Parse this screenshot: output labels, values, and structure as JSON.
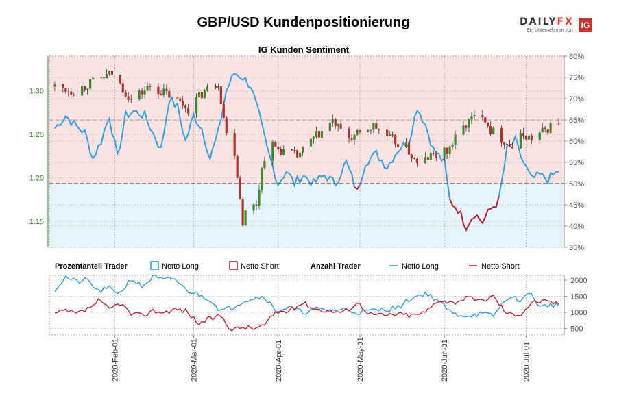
{
  "header": {
    "title": "GBP/USD Kundenpositionierung",
    "brand": {
      "name_left": "DAILY",
      "name_right": "FX",
      "tagline": "Ein Unternehmen von",
      "ig": "IG"
    }
  },
  "colors": {
    "long": "#2f9fe0",
    "short": "#c51d34",
    "long_fill": "#e6f4fb",
    "short_fill": "#fbe3e3",
    "candle_up": "#3a8a2a",
    "candle_down": "#b0322a",
    "price_axis": "#3a8a2a"
  },
  "legend": {
    "group1": "Prozentanteil Trader",
    "long": "Netto Long",
    "short": "Netto Short",
    "group2": "Anzahl Trader"
  },
  "chart_data": [
    {
      "type": "candlestick",
      "title": "IG Kunden Sentiment",
      "x_ticks": [
        "2020-Feb-01",
        "2020-Mar-01",
        "2020-Apr-01",
        "2020-May-01",
        "2020-Jun-01",
        "2020-Jul-01"
      ],
      "price_axis": {
        "ylim": [
          1.12,
          1.34
        ],
        "ticks": [
          "1.15",
          "1.20",
          "1.25",
          "1.30"
        ]
      },
      "sentiment_axis": {
        "ylim": [
          35,
          80
        ],
        "ticks": [
          "35%",
          "40%",
          "45%",
          "50%",
          "55%",
          "60%",
          "65%",
          "70%",
          "75%",
          "80%"
        ],
        "reference_line": 50
      },
      "price_close_keypoints": [
        {
          "x": "2020-01-10",
          "y": 1.305
        },
        {
          "x": "2020-01-17",
          "y": 1.3
        },
        {
          "x": "2020-01-24",
          "y": 1.31
        },
        {
          "x": "2020-01-31",
          "y": 1.32
        },
        {
          "x": "2020-02-07",
          "y": 1.29
        },
        {
          "x": "2020-02-14",
          "y": 1.305
        },
        {
          "x": "2020-02-21",
          "y": 1.295
        },
        {
          "x": "2020-02-28",
          "y": 1.28
        },
        {
          "x": "2020-03-05",
          "y": 1.3
        },
        {
          "x": "2020-03-10",
          "y": 1.31
        },
        {
          "x": "2020-03-13",
          "y": 1.25
        },
        {
          "x": "2020-03-16",
          "y": 1.23
        },
        {
          "x": "2020-03-19",
          "y": 1.15
        },
        {
          "x": "2020-03-20",
          "y": 1.16
        },
        {
          "x": "2020-03-24",
          "y": 1.17
        },
        {
          "x": "2020-03-26",
          "y": 1.21
        },
        {
          "x": "2020-03-28",
          "y": 1.24
        },
        {
          "x": "2020-04-03",
          "y": 1.23
        },
        {
          "x": "2020-04-08",
          "y": 1.225
        },
        {
          "x": "2020-04-14",
          "y": 1.245
        },
        {
          "x": "2020-04-21",
          "y": 1.265
        },
        {
          "x": "2020-04-26",
          "y": 1.245
        },
        {
          "x": "2020-05-01",
          "y": 1.25
        },
        {
          "x": "2020-05-06",
          "y": 1.26
        },
        {
          "x": "2020-05-12",
          "y": 1.245
        },
        {
          "x": "2020-05-18",
          "y": 1.235
        },
        {
          "x": "2020-05-22",
          "y": 1.215
        },
        {
          "x": "2020-05-27",
          "y": 1.225
        },
        {
          "x": "2020-06-02",
          "y": 1.23
        },
        {
          "x": "2020-06-06",
          "y": 1.25
        },
        {
          "x": "2020-06-10",
          "y": 1.265
        },
        {
          "x": "2020-06-15",
          "y": 1.275
        },
        {
          "x": "2020-06-18",
          "y": 1.255
        },
        {
          "x": "2020-06-22",
          "y": 1.245
        },
        {
          "x": "2020-06-26",
          "y": 1.235
        },
        {
          "x": "2020-06-30",
          "y": 1.25
        },
        {
          "x": "2020-07-03",
          "y": 1.245
        },
        {
          "x": "2020-07-08",
          "y": 1.255
        },
        {
          "x": "2020-07-13",
          "y": 1.265
        }
      ],
      "series": [
        {
          "name": "Netto Long",
          "unit": "%",
          "keypoints": [
            {
              "x": "2020-01-10",
              "y": 63
            },
            {
              "x": "2020-01-14",
              "y": 66
            },
            {
              "x": "2020-01-17",
              "y": 64
            },
            {
              "x": "2020-01-21",
              "y": 62
            },
            {
              "x": "2020-01-24",
              "y": 56
            },
            {
              "x": "2020-01-27",
              "y": 60
            },
            {
              "x": "2020-01-30",
              "y": 66
            },
            {
              "x": "2020-02-02",
              "y": 56
            },
            {
              "x": "2020-02-05",
              "y": 66
            },
            {
              "x": "2020-02-08",
              "y": 67
            },
            {
              "x": "2020-02-12",
              "y": 66
            },
            {
              "x": "2020-02-15",
              "y": 62
            },
            {
              "x": "2020-02-18",
              "y": 58
            },
            {
              "x": "2020-02-21",
              "y": 70
            },
            {
              "x": "2020-02-24",
              "y": 68
            },
            {
              "x": "2020-02-27",
              "y": 60
            },
            {
              "x": "2020-03-01",
              "y": 66
            },
            {
              "x": "2020-03-04",
              "y": 63
            },
            {
              "x": "2020-03-07",
              "y": 56
            },
            {
              "x": "2020-03-10",
              "y": 62
            },
            {
              "x": "2020-03-13",
              "y": 72
            },
            {
              "x": "2020-03-16",
              "y": 76
            },
            {
              "x": "2020-03-19",
              "y": 75
            },
            {
              "x": "2020-03-22",
              "y": 73
            },
            {
              "x": "2020-03-25",
              "y": 66
            },
            {
              "x": "2020-03-28",
              "y": 58
            },
            {
              "x": "2020-04-01",
              "y": 50
            },
            {
              "x": "2020-04-04",
              "y": 53
            },
            {
              "x": "2020-04-07",
              "y": 50
            },
            {
              "x": "2020-04-10",
              "y": 52
            },
            {
              "x": "2020-04-14",
              "y": 50
            },
            {
              "x": "2020-04-18",
              "y": 52
            },
            {
              "x": "2020-04-22",
              "y": 50
            },
            {
              "x": "2020-04-26",
              "y": 55
            },
            {
              "x": "2020-04-30",
              "y": 48
            },
            {
              "x": "2020-05-03",
              "y": 55
            },
            {
              "x": "2020-05-07",
              "y": 57
            },
            {
              "x": "2020-05-11",
              "y": 54
            },
            {
              "x": "2020-05-15",
              "y": 58
            },
            {
              "x": "2020-05-19",
              "y": 60
            },
            {
              "x": "2020-05-22",
              "y": 68
            },
            {
              "x": "2020-05-25",
              "y": 64
            },
            {
              "x": "2020-05-28",
              "y": 58
            },
            {
              "x": "2020-06-01",
              "y": 55
            },
            {
              "x": "2020-06-03",
              "y": 46
            },
            {
              "x": "2020-06-06",
              "y": 44
            },
            {
              "x": "2020-06-09",
              "y": 40
            },
            {
              "x": "2020-06-12",
              "y": 43
            },
            {
              "x": "2020-06-15",
              "y": 41
            },
            {
              "x": "2020-06-18",
              "y": 44
            },
            {
              "x": "2020-06-21",
              "y": 46
            },
            {
              "x": "2020-06-24",
              "y": 58
            },
            {
              "x": "2020-06-27",
              "y": 60
            },
            {
              "x": "2020-06-30",
              "y": 55
            },
            {
              "x": "2020-07-03",
              "y": 51
            },
            {
              "x": "2020-07-06",
              "y": 52
            },
            {
              "x": "2020-07-09",
              "y": 51
            },
            {
              "x": "2020-07-13",
              "y": 53
            }
          ]
        },
        {
          "name": "Netto Short",
          "unit": "%",
          "derived": "100 - Netto Long"
        }
      ]
    },
    {
      "type": "line",
      "title": "Anzahl Trader",
      "ylim": [
        300,
        2150
      ],
      "ticks": [
        "500",
        "1000",
        "1500",
        "2000"
      ],
      "series": [
        {
          "name": "Netto Long",
          "keypoints": [
            {
              "x": "2020-01-10",
              "y": 1700
            },
            {
              "x": "2020-01-14",
              "y": 2100
            },
            {
              "x": "2020-01-18",
              "y": 1950
            },
            {
              "x": "2020-01-22",
              "y": 2000
            },
            {
              "x": "2020-01-26",
              "y": 1650
            },
            {
              "x": "2020-01-30",
              "y": 1750
            },
            {
              "x": "2020-02-03",
              "y": 1600
            },
            {
              "x": "2020-02-07",
              "y": 2050
            },
            {
              "x": "2020-02-11",
              "y": 1800
            },
            {
              "x": "2020-02-15",
              "y": 2100
            },
            {
              "x": "2020-02-19",
              "y": 2000
            },
            {
              "x": "2020-02-23",
              "y": 2050
            },
            {
              "x": "2020-02-27",
              "y": 1700
            },
            {
              "x": "2020-03-03",
              "y": 1550
            },
            {
              "x": "2020-03-07",
              "y": 1400
            },
            {
              "x": "2020-03-11",
              "y": 1050
            },
            {
              "x": "2020-03-15",
              "y": 1150
            },
            {
              "x": "2020-03-19",
              "y": 1350
            },
            {
              "x": "2020-03-23",
              "y": 1450
            },
            {
              "x": "2020-03-27",
              "y": 1500
            },
            {
              "x": "2020-03-31",
              "y": 1050
            },
            {
              "x": "2020-04-05",
              "y": 1150
            },
            {
              "x": "2020-04-10",
              "y": 1000
            },
            {
              "x": "2020-04-15",
              "y": 1100
            },
            {
              "x": "2020-04-20",
              "y": 1050
            },
            {
              "x": "2020-04-25",
              "y": 1100
            },
            {
              "x": "2020-04-30",
              "y": 1000
            },
            {
              "x": "2020-05-05",
              "y": 1050
            },
            {
              "x": "2020-05-10",
              "y": 1100
            },
            {
              "x": "2020-05-15",
              "y": 1150
            },
            {
              "x": "2020-05-20",
              "y": 1450
            },
            {
              "x": "2020-05-25",
              "y": 1600
            },
            {
              "x": "2020-05-30",
              "y": 1350
            },
            {
              "x": "2020-06-04",
              "y": 950
            },
            {
              "x": "2020-06-09",
              "y": 900
            },
            {
              "x": "2020-06-14",
              "y": 950
            },
            {
              "x": "2020-06-19",
              "y": 900
            },
            {
              "x": "2020-06-24",
              "y": 1450
            },
            {
              "x": "2020-06-29",
              "y": 1400
            },
            {
              "x": "2020-07-03",
              "y": 1600
            },
            {
              "x": "2020-07-06",
              "y": 1150
            },
            {
              "x": "2020-07-10",
              "y": 1250
            },
            {
              "x": "2020-07-13",
              "y": 1200
            }
          ]
        },
        {
          "name": "Netto Short",
          "keypoints": [
            {
              "x": "2020-01-10",
              "y": 950
            },
            {
              "x": "2020-01-14",
              "y": 1050
            },
            {
              "x": "2020-01-18",
              "y": 950
            },
            {
              "x": "2020-01-22",
              "y": 1100
            },
            {
              "x": "2020-01-26",
              "y": 1350
            },
            {
              "x": "2020-01-30",
              "y": 1100
            },
            {
              "x": "2020-02-03",
              "y": 1300
            },
            {
              "x": "2020-02-07",
              "y": 950
            },
            {
              "x": "2020-02-11",
              "y": 900
            },
            {
              "x": "2020-02-15",
              "y": 1050
            },
            {
              "x": "2020-02-19",
              "y": 1000
            },
            {
              "x": "2020-02-23",
              "y": 1100
            },
            {
              "x": "2020-02-27",
              "y": 1050
            },
            {
              "x": "2020-03-03",
              "y": 650
            },
            {
              "x": "2020-03-07",
              "y": 800
            },
            {
              "x": "2020-03-11",
              "y": 900
            },
            {
              "x": "2020-03-15",
              "y": 450
            },
            {
              "x": "2020-03-19",
              "y": 550
            },
            {
              "x": "2020-03-23",
              "y": 500
            },
            {
              "x": "2020-03-27",
              "y": 600
            },
            {
              "x": "2020-03-31",
              "y": 1000
            },
            {
              "x": "2020-04-05",
              "y": 1050
            },
            {
              "x": "2020-04-10",
              "y": 1300
            },
            {
              "x": "2020-04-15",
              "y": 1100
            },
            {
              "x": "2020-04-20",
              "y": 1050
            },
            {
              "x": "2020-04-25",
              "y": 1000
            },
            {
              "x": "2020-04-30",
              "y": 1300
            },
            {
              "x": "2020-05-05",
              "y": 950
            },
            {
              "x": "2020-05-10",
              "y": 900
            },
            {
              "x": "2020-05-15",
              "y": 950
            },
            {
              "x": "2020-05-20",
              "y": 900
            },
            {
              "x": "2020-05-25",
              "y": 1000
            },
            {
              "x": "2020-05-30",
              "y": 1400
            },
            {
              "x": "2020-06-04",
              "y": 1300
            },
            {
              "x": "2020-06-09",
              "y": 1450
            },
            {
              "x": "2020-06-14",
              "y": 1350
            },
            {
              "x": "2020-06-19",
              "y": 1500
            },
            {
              "x": "2020-06-24",
              "y": 950
            },
            {
              "x": "2020-06-29",
              "y": 950
            },
            {
              "x": "2020-07-03",
              "y": 1300
            },
            {
              "x": "2020-07-06",
              "y": 1350
            },
            {
              "x": "2020-07-10",
              "y": 1300
            },
            {
              "x": "2020-07-13",
              "y": 1300
            }
          ]
        }
      ]
    }
  ]
}
